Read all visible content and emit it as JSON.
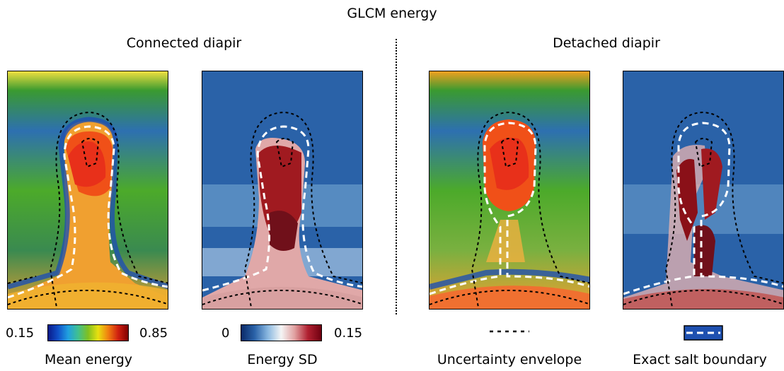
{
  "figure": {
    "title": "GLCM energy",
    "groups": [
      {
        "label": "Connected diapir"
      },
      {
        "label": "Detached diapir"
      }
    ],
    "colorbars": [
      {
        "label": "Mean energy",
        "min": "0.15",
        "max": "0.85",
        "colormap": "jet"
      },
      {
        "label": "Energy SD",
        "min": "0",
        "max": "0.15",
        "colormap": "seismic"
      }
    ],
    "legend": [
      {
        "label": "Uncertainty envelope",
        "style": "black dotted line"
      },
      {
        "label": "Exact salt boundary",
        "style": "white dashed line on blue"
      }
    ]
  },
  "colors": {
    "jet_low": "#0a3aa0",
    "jet_mid": "#4caa2a",
    "jet_high": "#e8401a",
    "sd_low": "#1f5fa8",
    "sd_mid": "#f5f5f5",
    "sd_high": "#7a0c14"
  }
}
